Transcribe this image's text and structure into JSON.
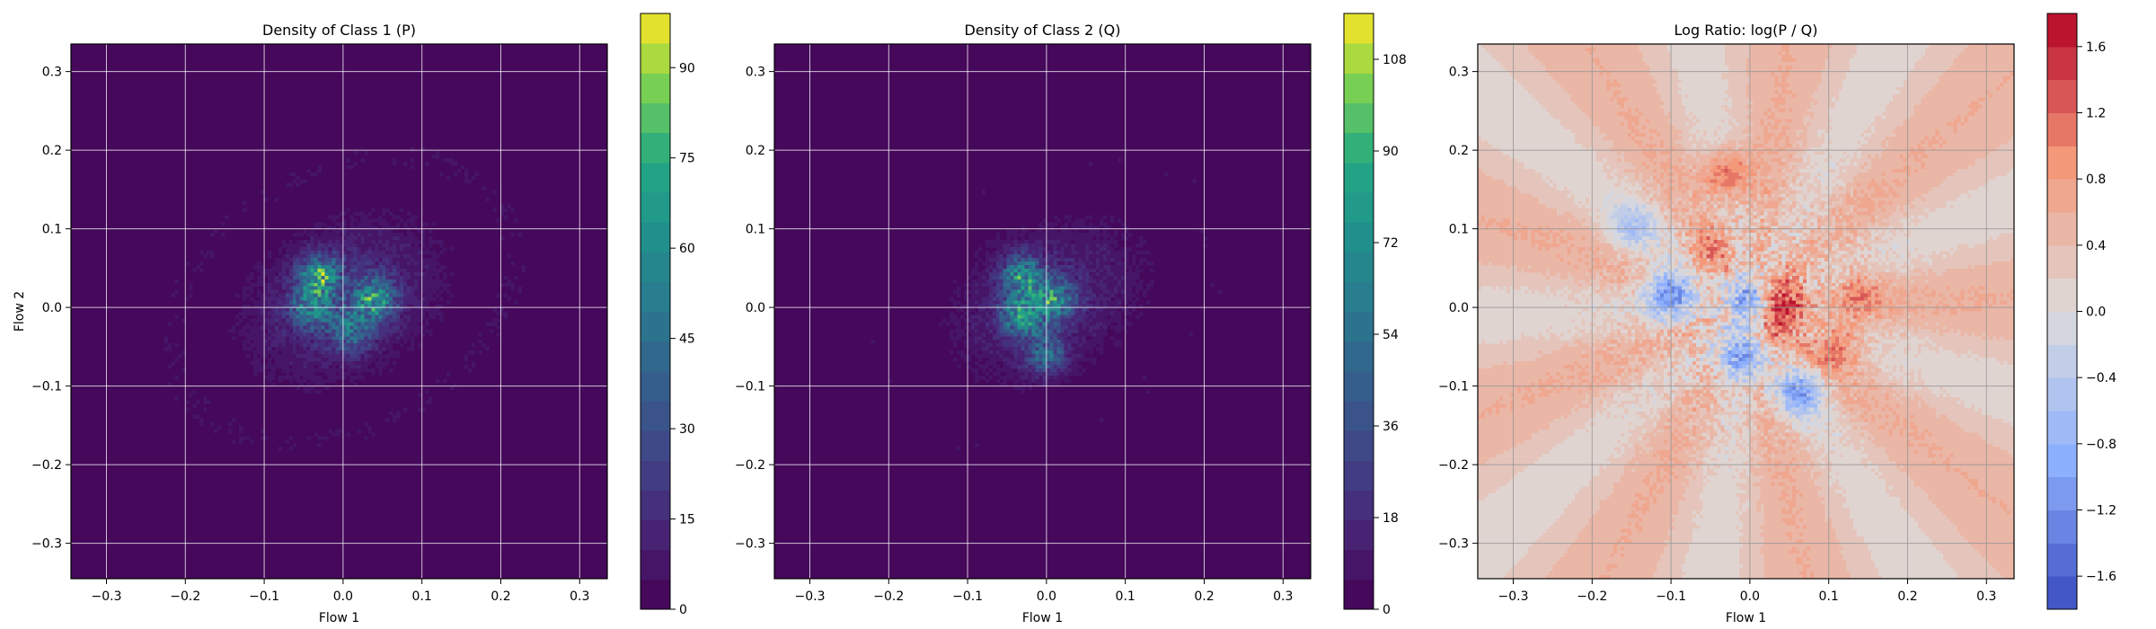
{
  "chart_data": [
    {
      "type": "heatmap",
      "subtype": "filled-contour",
      "title": "Density of Class 1 (P)",
      "xlabel": "Flow 1",
      "ylabel": "Flow 2",
      "xlim": [
        -0.345,
        0.335
      ],
      "ylim": [
        -0.345,
        0.335
      ],
      "xticks": [
        -0.3,
        -0.2,
        -0.1,
        0.0,
        0.1,
        0.2,
        0.3
      ],
      "yticks": [
        -0.3,
        -0.2,
        -0.1,
        0.0,
        0.1,
        0.2,
        0.3
      ],
      "grid": true,
      "colormap": "viridis",
      "colorbar": {
        "range": [
          0,
          99
        ],
        "ticks": [
          0,
          15,
          30,
          45,
          60,
          75,
          90
        ],
        "levels": 20
      },
      "density_blobs": [
        {
          "x": -0.03,
          "y": 0.04,
          "peak": 95
        },
        {
          "x": 0.04,
          "y": 0.01,
          "peak": 92
        },
        {
          "x": -0.04,
          "y": 0.0,
          "peak": 70
        },
        {
          "x": 0.01,
          "y": -0.03,
          "peak": 60
        }
      ]
    },
    {
      "type": "heatmap",
      "subtype": "filled-contour",
      "title": "Density of Class 2 (Q)",
      "xlabel": "Flow 1",
      "ylabel": "",
      "xlim": [
        -0.345,
        0.335
      ],
      "ylim": [
        -0.345,
        0.335
      ],
      "xticks": [
        -0.3,
        -0.2,
        -0.1,
        0.0,
        0.1,
        0.2,
        0.3
      ],
      "yticks": [
        -0.3,
        -0.2,
        -0.1,
        0.0,
        0.1,
        0.2,
        0.3
      ],
      "grid": true,
      "colormap": "viridis",
      "colorbar": {
        "range": [
          0,
          117
        ],
        "ticks": [
          0,
          18,
          36,
          54,
          72,
          90,
          108
        ],
        "levels": 20
      },
      "density_blobs": [
        {
          "x": -0.03,
          "y": 0.04,
          "peak": 100
        },
        {
          "x": -0.03,
          "y": -0.01,
          "peak": 110
        },
        {
          "x": 0.01,
          "y": 0.01,
          "peak": 95
        },
        {
          "x": 0.0,
          "y": -0.06,
          "peak": 70
        }
      ]
    },
    {
      "type": "heatmap",
      "subtype": "filled-contour",
      "title": "Log Ratio: log(P / Q)",
      "xlabel": "Flow 1",
      "ylabel": "",
      "xlim": [
        -0.345,
        0.335
      ],
      "ylim": [
        -0.345,
        0.335
      ],
      "xticks": [
        -0.3,
        -0.2,
        -0.1,
        0.0,
        0.1,
        0.2,
        0.3
      ],
      "yticks": [
        -0.3,
        -0.2,
        -0.1,
        0.0,
        0.1,
        0.2,
        0.3
      ],
      "grid": true,
      "colormap": "coolwarm",
      "colorbar": {
        "range": [
          -1.8,
          1.8
        ],
        "ticks": [
          -1.6,
          -1.2,
          -0.8,
          -0.4,
          0.0,
          0.4,
          0.8,
          1.2,
          1.6
        ],
        "tick_labels": [
          "−1.6",
          "−1.2",
          "−0.8",
          "−0.4",
          "0.0",
          "0.4",
          "0.8",
          "1.2",
          "1.6"
        ],
        "levels": 18
      },
      "background_value": 0.35,
      "ratio_blobs": [
        {
          "x": -0.03,
          "y": 0.17,
          "value": 1.3
        },
        {
          "x": 0.04,
          "y": 0.01,
          "value": 1.5
        },
        {
          "x": 0.11,
          "y": -0.05,
          "value": 1.1
        },
        {
          "x": 0.14,
          "y": 0.02,
          "value": 0.9
        },
        {
          "x": -0.05,
          "y": 0.07,
          "value": 0.9
        },
        {
          "x": -0.1,
          "y": 0.02,
          "value": -1.2
        },
        {
          "x": 0.0,
          "y": 0.01,
          "value": -1.0
        },
        {
          "x": -0.01,
          "y": -0.06,
          "value": -1.0
        },
        {
          "x": 0.06,
          "y": -0.11,
          "value": -0.9
        },
        {
          "x": -0.15,
          "y": 0.1,
          "value": -0.4
        },
        {
          "x": 0.03,
          "y": -0.03,
          "value": 0.9
        }
      ]
    }
  ]
}
